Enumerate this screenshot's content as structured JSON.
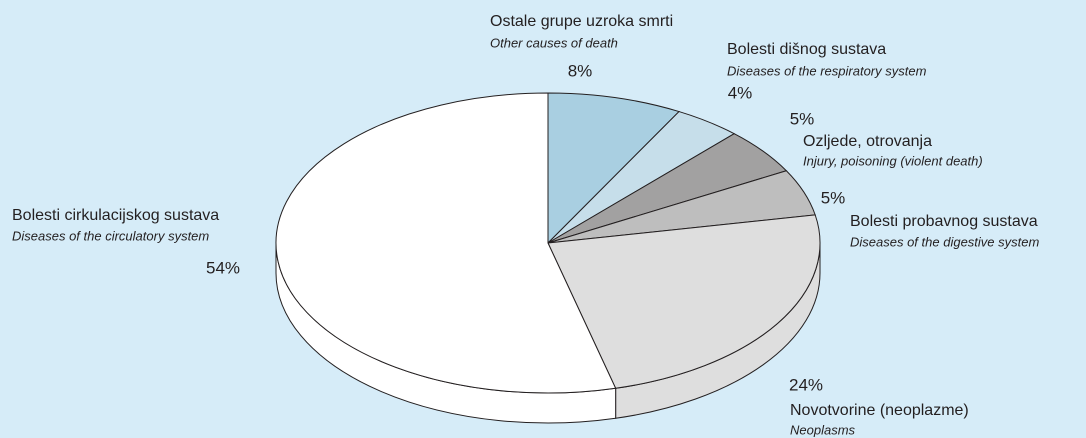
{
  "chart_data": {
    "type": "pie",
    "categories": [
      "Ostale grupe uzroka smrti",
      "Bolesti dišnog sustava",
      "Ozljede, otrovanja",
      "Bolesti probavnog sustava",
      "Novotvorine (neoplazme)",
      "Bolesti cirkulacijskog sustava"
    ],
    "categories_en": [
      "Other causes of death",
      "Diseases of the respiratory system",
      "Injury, poisoning (violent death)",
      "Diseases of the digestive system",
      "Neoplasms",
      "Diseases of the circulatory system"
    ],
    "values": [
      8,
      4,
      5,
      5,
      24,
      54
    ],
    "value_labels": [
      "8%",
      "4%",
      "5%",
      "5%",
      "24%",
      "54%"
    ],
    "colors": [
      "#a9cfe1",
      "#c6deea",
      "#a2a1a1",
      "#bebebe",
      "#dedede",
      "#ffffff"
    ]
  }
}
